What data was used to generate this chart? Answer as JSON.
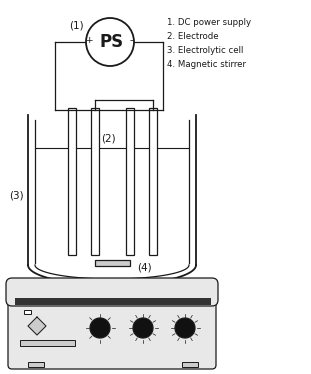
{
  "bg_color": "#ffffff",
  "line_color": "#1a1a1a",
  "dark_gray": "#333333",
  "med_gray": "#888888",
  "light_gray": "#cccccc",
  "lighter_gray": "#e8e8e8",
  "knob_color": "#111111",
  "legend_lines": [
    "1. DC power supply",
    "2. Electrode",
    "3. Electrolytic cell",
    "4. Magnetic stirrer"
  ],
  "ps_label": "PS",
  "plus_label": "+",
  "minus_label": "-",
  "label1": "(1)",
  "label2": "(2)",
  "label3": "(3)",
  "label4": "(4)"
}
